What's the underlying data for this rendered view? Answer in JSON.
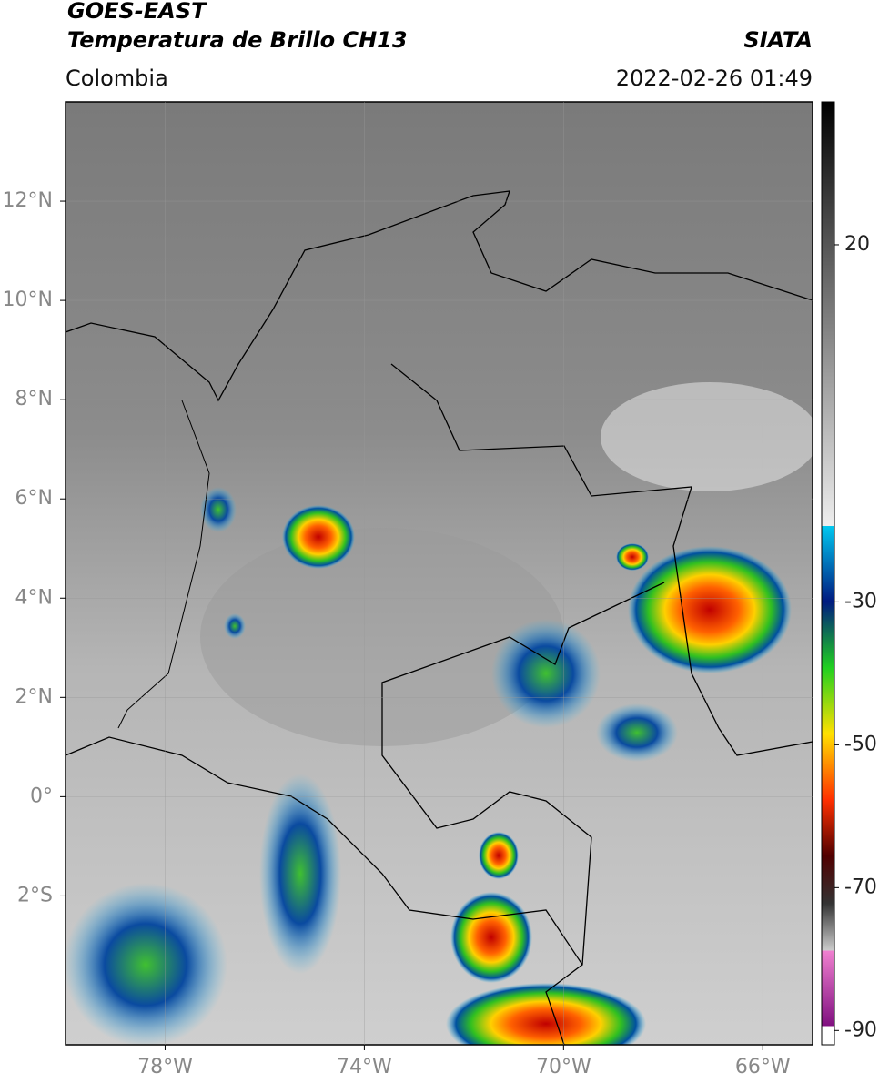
{
  "header": {
    "title": "GOES-EAST",
    "subtitle": "Temperatura de Brillo CH13",
    "source": "SIATA",
    "region": "Colombia",
    "datetime": "2022-02-26 01:49"
  },
  "map": {
    "xlim": [
      -80,
      -65
    ],
    "ylim": [
      -5,
      14
    ],
    "xticks": [
      {
        "value": -78,
        "label": "78°W"
      },
      {
        "value": -74,
        "label": "74°W"
      },
      {
        "value": -70,
        "label": "70°W"
      },
      {
        "value": -66,
        "label": "66°W"
      }
    ],
    "yticks": [
      {
        "value": 12,
        "label": "12°N"
      },
      {
        "value": 10,
        "label": "10°N"
      },
      {
        "value": 8,
        "label": "8°N"
      },
      {
        "value": 6,
        "label": "6°N"
      },
      {
        "value": 4,
        "label": "4°N"
      },
      {
        "value": 2,
        "label": "2°N"
      },
      {
        "value": 0,
        "label": "0°"
      },
      {
        "value": -2,
        "label": "2°S"
      }
    ],
    "grid": true
  },
  "colorbar": {
    "lim": [
      -92,
      40
    ],
    "ticks": [
      20,
      -30,
      -50,
      -70,
      -90
    ]
  }
}
